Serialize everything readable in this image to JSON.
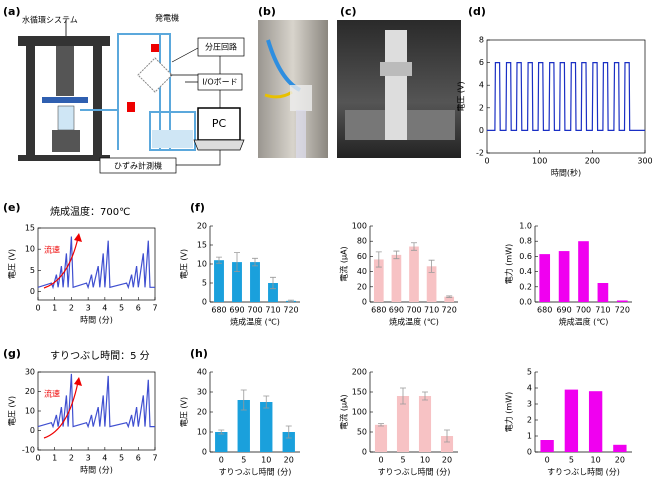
{
  "panel_labels": [
    "(a)",
    "(b)",
    "(c)",
    "(d)",
    "(e)",
    "(f)",
    "(g)",
    "(h)"
  ],
  "diagram": {
    "water_system": "水循環システム",
    "generator": "発電機",
    "divider": "分圧回路",
    "io_board": "I/Oボード",
    "pc": "PC",
    "strain_meter": "ひずみ計測機"
  },
  "chart_data": [
    {
      "type": "line",
      "ylabel": "電圧 (V)",
      "xlabel": "時間(秒)",
      "color": "#1a2fc4",
      "x": [
        0,
        15,
        16,
        24,
        25,
        36,
        37,
        45,
        46,
        56,
        57,
        65,
        66,
        77,
        78,
        86,
        87,
        97,
        98,
        106,
        107,
        118,
        119,
        127,
        128,
        138,
        139,
        147,
        148,
        159,
        160,
        168,
        169,
        179,
        180,
        188,
        189,
        200,
        201,
        209,
        210,
        220,
        221,
        229,
        230,
        241,
        242,
        250,
        251,
        261,
        262,
        270,
        271,
        300
      ],
      "values": [
        0,
        0,
        6,
        6,
        0,
        0,
        6,
        6,
        0,
        0,
        6,
        6,
        0,
        0,
        6,
        6,
        0,
        0,
        6,
        6,
        0,
        0,
        6,
        6,
        0,
        0,
        6,
        6,
        0,
        0,
        6,
        6,
        0,
        0,
        6,
        6,
        0,
        0,
        6,
        6,
        0,
        0,
        6,
        6,
        0,
        0,
        6,
        6,
        0,
        0,
        6,
        6,
        0,
        0
      ],
      "xlim": [
        0,
        300
      ],
      "xticks": [
        0,
        100,
        200,
        300
      ],
      "ylim": [
        -2,
        8
      ],
      "yticks": [
        -2,
        0,
        2,
        4,
        6,
        8
      ]
    },
    {
      "type": "line",
      "title": "焼成温度：700℃",
      "annotation": "流速",
      "ylabel": "電圧 (V)",
      "xlabel": "時間 (分)",
      "color": "#3f4fd0",
      "x": [
        0,
        0.8,
        0.9,
        1.1,
        1.2,
        1.4,
        1.5,
        1.7,
        1.8,
        2.0,
        2.1,
        2.9,
        3.0,
        3.2,
        3.3,
        3.6,
        3.7,
        3.9,
        4.0,
        4.2,
        4.3,
        5.3,
        5.4,
        5.6,
        5.7,
        5.9,
        6.0,
        6.3,
        6.4,
        6.6,
        6.7,
        7
      ],
      "values": [
        1,
        2,
        1,
        4,
        1,
        6,
        1,
        9,
        1,
        13,
        1,
        2,
        1,
        4,
        1,
        6,
        1,
        9,
        1,
        12,
        1,
        2,
        1,
        4,
        1,
        6,
        1,
        9,
        1,
        12,
        1,
        1
      ],
      "xlim": [
        0,
        7
      ],
      "xticks": [
        0,
        1,
        2,
        3,
        4,
        5,
        6,
        7
      ],
      "ylim": [
        -2,
        15
      ],
      "yticks": [
        0,
        5,
        10,
        15
      ]
    },
    {
      "type": "bar",
      "ylabel": "電圧 (V)",
      "xlabel": "焼成温度 (℃)",
      "color": "#1aa0dc",
      "categories": [
        "680",
        "690",
        "700",
        "710",
        "720"
      ],
      "values": [
        11,
        10.5,
        10.5,
        5,
        0.3
      ],
      "errors": [
        0.8,
        2.5,
        1,
        1.5,
        0.2
      ],
      "ylim": [
        0,
        20
      ],
      "yticks": [
        0,
        5,
        10,
        15,
        20
      ]
    },
    {
      "type": "bar",
      "ylabel": "電流 (μA)",
      "xlabel": "焼成温度 (℃)",
      "color": "#f7c2c4",
      "categories": [
        "680",
        "690",
        "700",
        "710",
        "720"
      ],
      "values": [
        56,
        62,
        73,
        47,
        7
      ],
      "errors": [
        10,
        5,
        5,
        8,
        1
      ],
      "ylim": [
        0,
        100
      ],
      "yticks": [
        0,
        20,
        40,
        60,
        80,
        100
      ]
    },
    {
      "type": "bar",
      "ylabel": "電力 (mW)",
      "xlabel": "焼成温度 (℃)",
      "color": "#f000f0",
      "categories": [
        "680",
        "690",
        "700",
        "710",
        "720"
      ],
      "values": [
        0.63,
        0.67,
        0.8,
        0.25,
        0.02
      ],
      "ylim": [
        0,
        1
      ],
      "yticks": [
        {
          "value": 0,
          "label": "0.0"
        },
        0.2,
        0.4,
        0.6,
        0.8,
        {
          "value": 1,
          "label": "1.0"
        }
      ]
    },
    {
      "type": "line",
      "title": "すりつぶし時間：5 分",
      "annotation": "流速",
      "ylabel": "電圧 (V)",
      "xlabel": "時間 (分)",
      "color": "#3f4fd0",
      "x": [
        0,
        0.8,
        0.9,
        1.1,
        1.2,
        1.4,
        1.5,
        1.7,
        1.8,
        2.0,
        2.1,
        2.9,
        3.0,
        3.2,
        3.3,
        3.6,
        3.7,
        3.9,
        4.0,
        4.2,
        4.3,
        5.3,
        5.4,
        5.6,
        5.7,
        5.9,
        6.0,
        6.3,
        6.4,
        6.6,
        6.7,
        7
      ],
      "values": [
        2,
        4,
        2,
        8,
        2,
        12,
        2,
        18,
        2,
        29,
        2,
        4,
        2,
        8,
        2,
        12,
        2,
        18,
        2,
        28,
        2,
        4,
        2,
        8,
        2,
        12,
        2,
        18,
        2,
        26,
        2,
        2
      ],
      "xlim": [
        0,
        7
      ],
      "xticks": [
        0,
        1,
        2,
        3,
        4,
        5,
        6,
        7
      ],
      "ylim": [
        -10,
        30
      ],
      "yticks": [
        -10,
        0,
        10,
        20,
        30
      ]
    },
    {
      "type": "bar",
      "ylabel": "電圧 (V)",
      "xlabel": "すりつぶし時間 (分)",
      "color": "#1aa0dc",
      "categories": [
        "0",
        "5",
        "10",
        "20"
      ],
      "values": [
        10,
        26,
        25,
        10
      ],
      "errors": [
        1,
        5,
        3,
        3
      ],
      "ylim": [
        0,
        40
      ],
      "yticks": [
        0,
        10,
        20,
        30,
        40
      ]
    },
    {
      "type": "bar",
      "ylabel": "電流 (μA)",
      "xlabel": "すりつぶし時間 (分)",
      "color": "#f7c2c4",
      "categories": [
        "0",
        "5",
        "10",
        "20"
      ],
      "values": [
        68,
        140,
        140,
        40
      ],
      "errors": [
        3,
        20,
        10,
        15
      ],
      "ylim": [
        0,
        200
      ],
      "yticks": [
        0,
        50,
        100,
        150,
        200
      ]
    },
    {
      "type": "bar",
      "ylabel": "電力 (mW)",
      "xlabel": "すりつぶし時間 (分)",
      "color": "#f000f0",
      "categories": [
        "0",
        "5",
        "10",
        "20"
      ],
      "values": [
        0.75,
        3.9,
        3.8,
        0.45
      ],
      "ylim": [
        0,
        5
      ],
      "yticks": [
        0,
        1,
        2,
        3,
        4,
        5
      ]
    }
  ]
}
